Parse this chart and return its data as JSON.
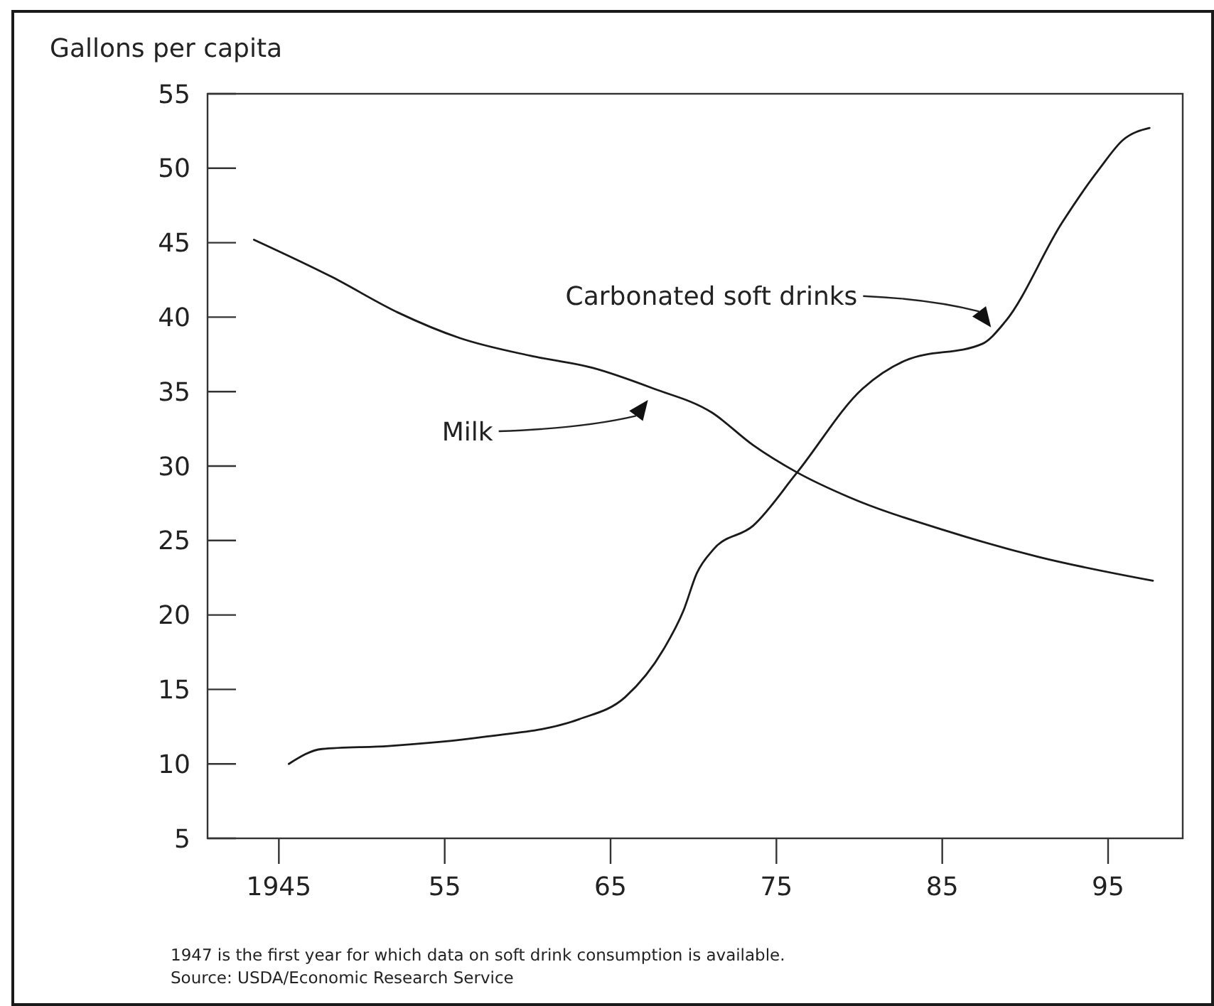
{
  "chart_data": {
    "type": "line",
    "ylabel": "Gallons per capita",
    "xlim": [
      1940.7,
      1999.5
    ],
    "ylim": [
      5,
      55
    ],
    "xticks": [
      {
        "value": 1945,
        "label": "1945"
      },
      {
        "value": 1955,
        "label": "55"
      },
      {
        "value": 1965,
        "label": "65"
      },
      {
        "value": 1975,
        "label": "75"
      },
      {
        "value": 1985,
        "label": "85"
      },
      {
        "value": 1995,
        "label": "95"
      }
    ],
    "yticks": [
      5,
      10,
      15,
      20,
      25,
      30,
      35,
      40,
      45,
      50,
      55
    ],
    "grid": false,
    "marker": "none",
    "line_style": "solid",
    "series": [
      {
        "name": "Milk",
        "color": "#1a1a1a",
        "x": [
          1943.5,
          1948.2,
          1952.2,
          1955.9,
          1960.2,
          1963.9,
          1967.6,
          1971.1,
          1973.6,
          1976.2,
          1979.4,
          1985.1,
          1990.8,
          1997.7
        ],
        "values": [
          45.2,
          42.7,
          40.3,
          38.6,
          37.4,
          36.6,
          35.2,
          33.6,
          31.4,
          29.6,
          27.9,
          25.7,
          23.9,
          22.3
        ]
      },
      {
        "name": "Carbonated soft drinks",
        "color": "#1a1a1a",
        "x": [
          1945.6,
          1947.6,
          1951.6,
          1957.3,
          1963.1,
          1965.9,
          1968.2,
          1969.4,
          1970.2,
          1971.2,
          1973.6,
          1976.2,
          1980.2,
          1982.8,
          1987.4,
          1988.8,
          1992.2,
          1994.5,
          1995.9,
          1997.5
        ],
        "values": [
          10.0,
          11.0,
          11.2,
          11.8,
          13.0,
          14.5,
          17.7,
          20.3,
          22.8,
          24.4,
          26.0,
          29.5,
          35.2,
          37.1,
          38.2,
          39.7,
          46.3,
          50.0,
          51.9,
          52.7
        ]
      }
    ],
    "annotations": [
      "1947 is the first year for which data on soft drink consumption is available.",
      "Source: USDA/Economic Research Service"
    ]
  }
}
